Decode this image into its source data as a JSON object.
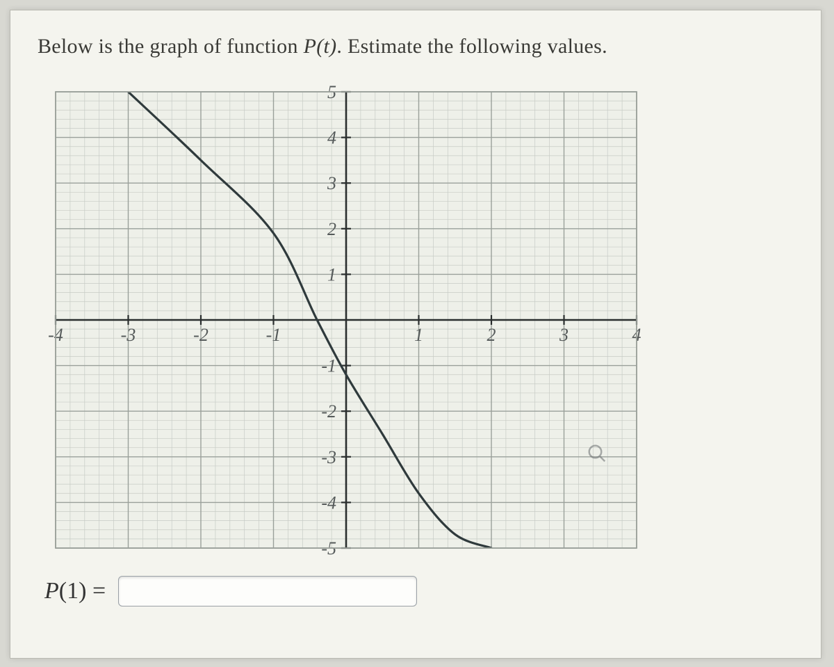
{
  "prompt": {
    "prefix": "Below is the graph of function ",
    "function_name": "P(t)",
    "suffix": ". Estimate the following values."
  },
  "chart": {
    "type": "line",
    "xlim": [
      -4,
      4
    ],
    "ylim": [
      -5,
      5
    ],
    "points": [
      [
        -3,
        5
      ],
      [
        -2,
        3.5
      ],
      [
        -1,
        1.9
      ],
      [
        -0.4,
        0
      ],
      [
        0,
        -1.2
      ],
      [
        0.5,
        -2.5
      ],
      [
        1,
        -3.8
      ],
      [
        1.5,
        -4.7
      ],
      [
        2,
        -5
      ]
    ],
    "curve_color": "#2f3a3c",
    "curve_width": 3.2,
    "major_grid_color": "#9aa09a",
    "minor_grid_color": "#c7cbc5",
    "axis_color": "#2a2e2e",
    "background_color": "#eef0e9",
    "major_step": 1,
    "minor_divisions": 5,
    "tick_font_size": 26,
    "tick_color": "#555a5a",
    "x_ticks": [
      {
        "v": -4,
        "label": "-4"
      },
      {
        "v": -3,
        "label": "-3"
      },
      {
        "v": -2,
        "label": "-2"
      },
      {
        "v": -1,
        "label": "-1"
      },
      {
        "v": 1,
        "label": "1"
      },
      {
        "v": 2,
        "label": "2"
      },
      {
        "v": 3,
        "label": "3"
      },
      {
        "v": 4,
        "label": "4"
      }
    ],
    "y_ticks": [
      {
        "v": 5,
        "label": "5"
      },
      {
        "v": 4,
        "label": "4"
      },
      {
        "v": 3,
        "label": "3"
      },
      {
        "v": 2,
        "label": "2"
      },
      {
        "v": 1,
        "label": "1"
      },
      {
        "v": -1,
        "label": "-1"
      },
      {
        "v": -2,
        "label": "-2"
      },
      {
        "v": -3,
        "label": "-3"
      },
      {
        "v": -4,
        "label": "-4"
      },
      {
        "v": -5,
        "label": "-5"
      }
    ]
  },
  "answer": {
    "label_prefix": "P",
    "label_arg": "(1)",
    "equals": " = ",
    "value": "",
    "placeholder": ""
  }
}
